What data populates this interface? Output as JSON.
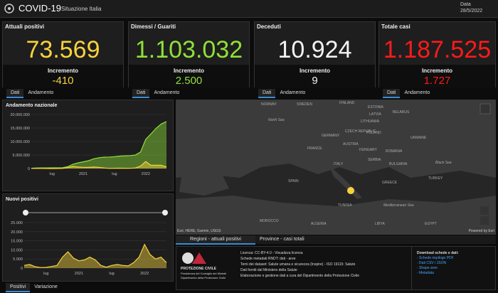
{
  "header": {
    "title": "COVID-19",
    "subtitle": "Situazione Italia",
    "date_label": "Data",
    "date": "28/5/2022"
  },
  "stats": [
    {
      "label": "Attuali positivi",
      "value": "73.569",
      "increment_label": "Incremento",
      "increment": "-410",
      "color": "#f7d23e"
    },
    {
      "label": "Dimessi / Guariti",
      "value": "1.103.032",
      "increment_label": "Incremento",
      "increment": "2.500",
      "color": "#8fe03a"
    },
    {
      "label": "Deceduti",
      "value": "10.924",
      "increment_label": "Incremento",
      "increment": "9",
      "color": "#f2f2f2"
    },
    {
      "label": "Totale casi",
      "value": "1.187.525",
      "increment_label": "Incremento",
      "increment": "1.727",
      "color": "#ff1a1a"
    }
  ],
  "stat_tabs": [
    "Dati",
    "Andamento"
  ],
  "charts": [
    {
      "type": "line",
      "title": "Andamento nazionale",
      "area": true,
      "categories": [
        null,
        null,
        null,
        null,
        "lug",
        null,
        null,
        null,
        null,
        null,
        "2021",
        null,
        null,
        null,
        null,
        null,
        "lug",
        null,
        null,
        null,
        null,
        null,
        "2022",
        null,
        null,
        null,
        null
      ],
      "series": [
        {
          "color": "#8fe03a",
          "values": [
            100000,
            200000,
            230000,
            240000,
            250000,
            270000,
            310000,
            680000,
            1600000,
            2100000,
            2500000,
            2900000,
            3600000,
            4000000,
            4200000,
            4260000,
            4360000,
            4600000,
            4700000,
            4800000,
            5000000,
            6100000,
            10800000,
            12800000,
            14900000,
            16500000,
            17400000
          ]
        },
        {
          "color": "#f7d23e",
          "values": [
            50000,
            100000,
            50000,
            20000,
            10000,
            20000,
            50000,
            350000,
            800000,
            580000,
            450000,
            420000,
            550000,
            450000,
            200000,
            50000,
            100000,
            130000,
            100000,
            80000,
            200000,
            900000,
            2600000,
            1200000,
            1200000,
            1200000,
            600000
          ]
        }
      ],
      "ylim": [
        0,
        20000000
      ],
      "yticks": [
        0,
        {
          "value": 5000000,
          "label": "5.000.000"
        },
        {
          "value": 10000000,
          "label": "10.000.000"
        },
        {
          "value": 15000000,
          "label": "15.000.000"
        },
        {
          "value": 20000000,
          "label": "20.000.000"
        }
      ],
      "grid": true
    },
    {
      "type": "line",
      "title": "Nuovi positivi",
      "area": true,
      "categories": [
        null,
        null,
        null,
        null,
        "lug",
        null,
        null,
        null,
        null,
        null,
        "2021",
        null,
        null,
        null,
        null,
        null,
        "lug",
        null,
        null,
        null,
        null,
        null,
        "2022",
        null,
        null,
        null,
        null
      ],
      "series": [
        {
          "color": "#f7d23e",
          "values": [
            1500,
            2000,
            800,
            300,
            400,
            900,
            1500,
            6000,
            9000,
            5500,
            4000,
            4500,
            6000,
            4500,
            1500,
            500,
            1500,
            2000,
            1500,
            1200,
            3000,
            6000,
            13000,
            7500,
            5000,
            6000,
            3000
          ]
        }
      ],
      "ylim": [
        0,
        25000
      ],
      "yticks": [
        0,
        {
          "value": 5000,
          "label": "5.000"
        },
        {
          "value": 10000,
          "label": "10.000"
        },
        {
          "value": 15000,
          "label": "15.000"
        },
        {
          "value": 20000,
          "label": "20.000"
        },
        {
          "value": 25000,
          "label": "25.000"
        }
      ],
      "grid": true
    }
  ],
  "chart_tabs": [
    "Positivi",
    "Variazione"
  ],
  "map": {
    "countries": [
      "NORWAY",
      "SWEDEN",
      "FINLAND",
      "ESTONIA",
      "LATVIA",
      "LITHUANIA",
      "BELARUS",
      "POLAND",
      "GERMANY",
      "CZECH REPUBLIC",
      "UKRAINE",
      "FRANCE",
      "AUSTRIA",
      "HUNGARY",
      "ROMANIA",
      "ITALY",
      "SERBIA",
      "BULGARIA",
      "SPAIN",
      "GREECE",
      "TURKEY",
      "TUNISIA",
      "MOROCCO",
      "ALGERIA",
      "LIBYA",
      "EGYPT"
    ],
    "seas": [
      "North Sea",
      "Black Sea",
      "Mediterranean Sea"
    ],
    "attribution": "Esri, HERE, Garmin, USGS",
    "powered": "Powered by Esri"
  },
  "map_tabs": [
    "Regioni - attuali positivi",
    "Province - casi totali"
  ],
  "info": {
    "logo": [
      "PROTEZIONE CIVILE",
      "Presidenza del Consiglio dei Ministri",
      "Dipartimento della Protezione Civile"
    ],
    "lines": [
      "Licenza: CC-BY-4.0 - Visualizza licenza",
      "Schede metadati RNDT: dati - aree",
      "Temi dei dataset: Salute umana e sicurezza (Inspire) - ISO 19115: Salute",
      "Dati forniti dal Ministero della Salute",
      "Elaborazione e gestione dati a cura del Dipartimento della Protezione Civile"
    ],
    "downloads_title": "Download schede e dati:",
    "downloads": [
      "- Schede riepilogo PDF",
      "- Dati CSV / JSON",
      "- Shape aree",
      "- Metadata"
    ]
  }
}
